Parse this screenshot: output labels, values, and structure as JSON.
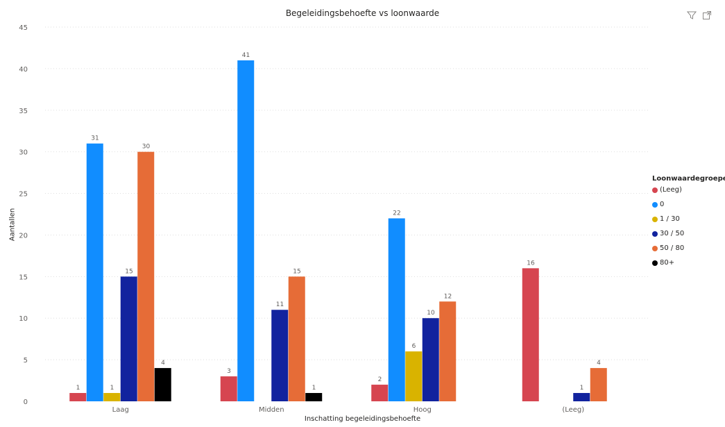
{
  "toolbar": {
    "icons": [
      "filter-icon",
      "focus-mode-icon"
    ]
  },
  "chart_data": {
    "type": "bar",
    "title": "Begeleidingsbehoefte vs loonwaarde",
    "xlabel": "Inschatting begeleidingsbehoefte",
    "ylabel": "Aantallen",
    "ylim": [
      0,
      45
    ],
    "yticks": [
      0,
      5,
      10,
      15,
      20,
      25,
      30,
      35,
      40,
      45
    ],
    "grid": true,
    "legend_position": "right",
    "legend_title": "Loonwaardegroepen",
    "categories": [
      "Laag",
      "Midden",
      "Hoog",
      "(Leeg)"
    ],
    "series": [
      {
        "name": "(Leeg)",
        "color": "#d64550",
        "values": [
          1,
          3,
          2,
          16
        ]
      },
      {
        "name": "0",
        "color": "#118dff",
        "values": [
          31,
          41,
          22,
          null
        ]
      },
      {
        "name": "1 / 30",
        "color": "#d9b300",
        "values": [
          1,
          null,
          6,
          null
        ]
      },
      {
        "name": "30 / 50",
        "color": "#12239e",
        "values": [
          15,
          11,
          10,
          1
        ]
      },
      {
        "name": "50 / 80",
        "color": "#e66c37",
        "values": [
          30,
          15,
          12,
          4
        ]
      },
      {
        "name": "80+",
        "color": "#000000",
        "values": [
          4,
          1,
          null,
          null
        ]
      }
    ]
  }
}
